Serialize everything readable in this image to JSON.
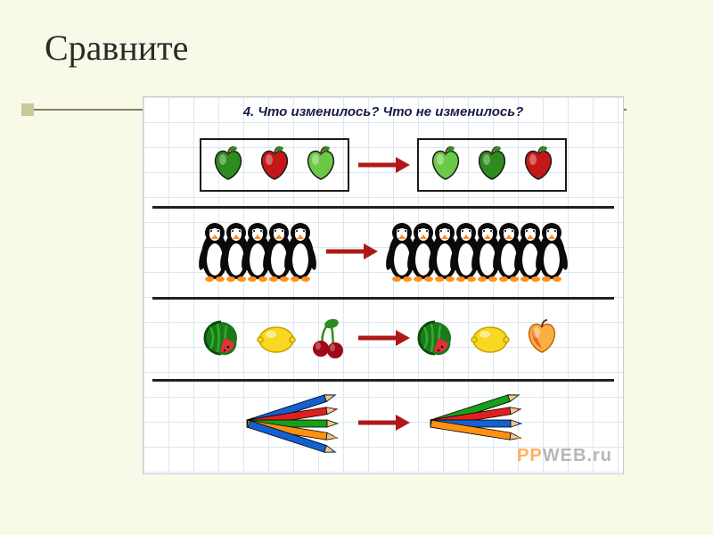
{
  "slide": {
    "title": "Сравните",
    "bullet_color": "#c8c89a",
    "underline_color": "#808065",
    "background": "#f9f9e8"
  },
  "worksheet": {
    "heading": "4. Что изменилось? Что не изменилось?",
    "grid_color": "#c8dff0",
    "arrow_color": "#b01818",
    "rows": [
      {
        "type": "apples",
        "left_boxed": true,
        "right_boxed": true,
        "left": [
          {
            "color": "#2e8b1e"
          },
          {
            "color": "#c41818"
          },
          {
            "color": "#6bc948"
          }
        ],
        "right": [
          {
            "color": "#6bc948"
          },
          {
            "color": "#2e8b1e"
          },
          {
            "color": "#c41818"
          }
        ]
      },
      {
        "type": "penguins",
        "left_count": 5,
        "right_count": 8
      },
      {
        "type": "fruits",
        "left": [
          "watermelon",
          "lemon",
          "cherries"
        ],
        "right": [
          "watermelon",
          "lemon",
          "apple"
        ]
      },
      {
        "type": "pencils",
        "left_colors": [
          "#1560d0",
          "#e02020",
          "#18a018",
          "#ff9010",
          "#1560d0"
        ],
        "right_colors": [
          "#18a018",
          "#e02020",
          "#1560d0",
          "#ff9010"
        ]
      }
    ],
    "watermark": {
      "part1": "PP",
      "part2": "WEB",
      "part3": ".ru"
    }
  }
}
